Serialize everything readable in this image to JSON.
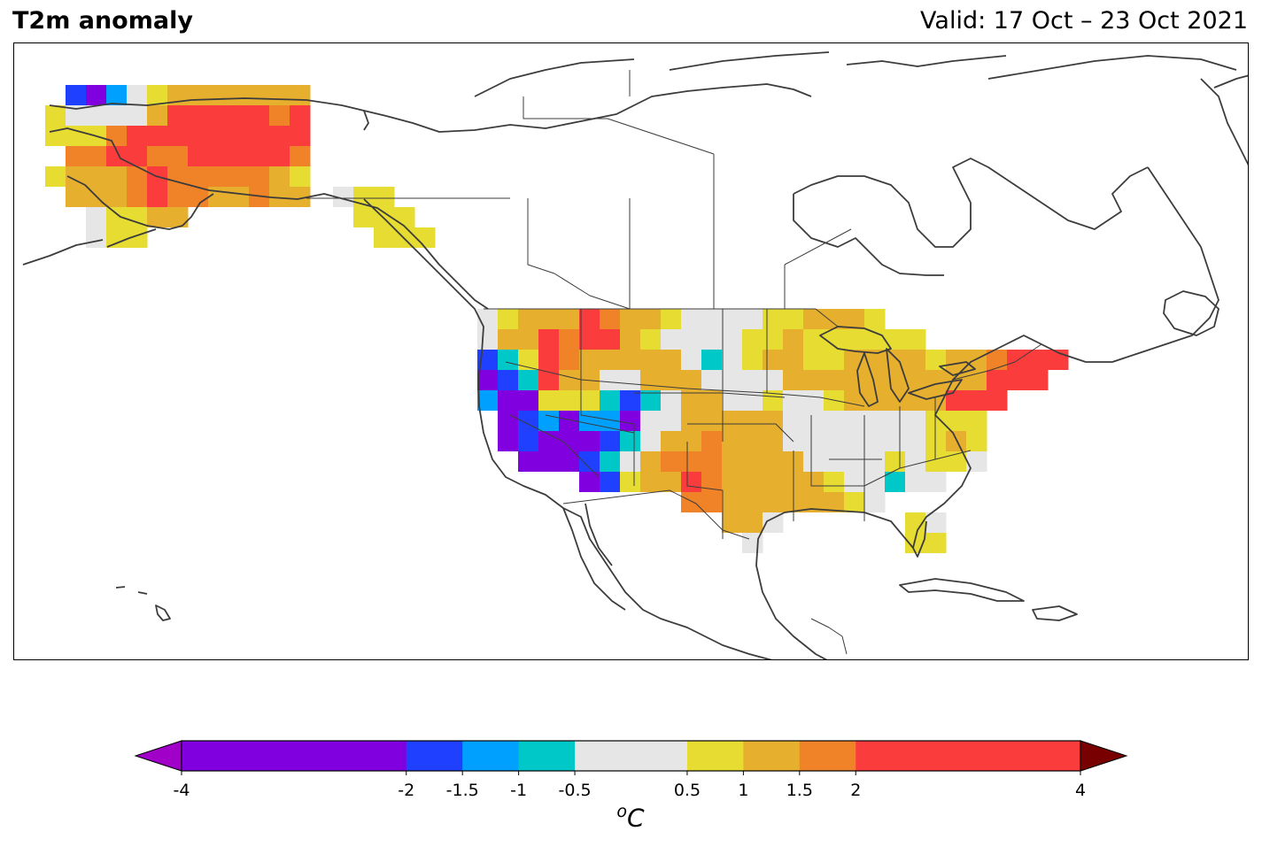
{
  "header": {
    "title": "T2m anomaly",
    "valid": "Valid: 17 Oct – 23 Oct 2021"
  },
  "colorbar": {
    "unit_prefix": "o",
    "unit_main": "C",
    "boundaries": [
      -4,
      -2,
      -1.5,
      -1,
      -0.5,
      0.5,
      1,
      1.5,
      2,
      4
    ],
    "tick_labels": [
      "-4",
      "-2",
      "-1.5",
      "-1",
      "-0.5",
      "0.5",
      "1",
      "1.5",
      "2",
      "4"
    ],
    "colors": [
      "#8000e0",
      "#2040ff",
      "#00a0ff",
      "#00c8c8",
      "#e6e6e6",
      "#e6dc32",
      "#e6af2d",
      "#f08228",
      "#fa3c3c"
    ],
    "under_color": "#a000c8",
    "over_color": "#780000"
  },
  "colors": {
    "coastline": "#3c3c3c",
    "frame": "#000000"
  }
}
